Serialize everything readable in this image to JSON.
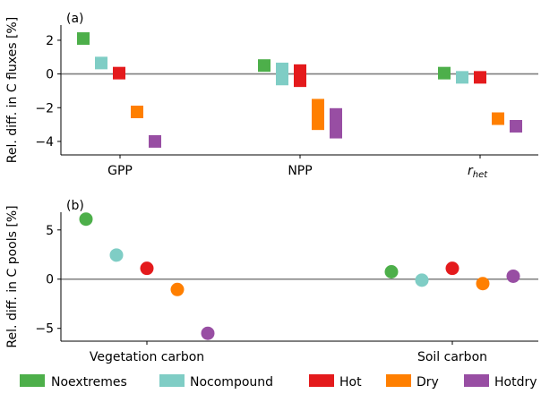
{
  "colors": {
    "Noextremes": "#4daf4a",
    "Nocompound": "#7fcdc5",
    "Hot": "#e41a1c",
    "Dry": "#ff7f00",
    "Hotdry": "#984ea3"
  },
  "legend": [
    "Noextremes",
    "Nocompound",
    "Hot",
    "Dry",
    "Hotdry"
  ],
  "chart_data": [
    {
      "type": "scatter",
      "panel_label": "(a)",
      "ylabel": "Rel. diff. in C fluxes [%]",
      "ylim": [
        -4.8,
        2.9
      ],
      "yticks": [
        2,
        0,
        -2,
        -4
      ],
      "ytick_labels": [
        "2",
        "0",
        "−2",
        "−4"
      ],
      "zero_line": true,
      "marker": "square",
      "categories": [
        "GPP",
        "NPP",
        "r_het"
      ],
      "category_labels": [
        "GPP",
        "NPP",
        "r"
      ],
      "category_subscripts": [
        "",
        "",
        "het"
      ],
      "series": [
        {
          "name": "Noextremes",
          "values": [
            [
              2.1,
              2.1
            ],
            [
              0.5,
              0.5
            ],
            [
              0.05,
              0.05
            ]
          ]
        },
        {
          "name": "Nocompound",
          "values": [
            [
              0.65,
              0.65
            ],
            [
              -0.3,
              0.3
            ],
            [
              -0.2,
              -0.2
            ]
          ]
        },
        {
          "name": "Hot",
          "values": [
            [
              0.05,
              0.05
            ],
            [
              -0.4,
              0.2
            ],
            [
              -0.2,
              -0.2
            ]
          ]
        },
        {
          "name": "Dry",
          "values": [
            [
              -2.25,
              -2.25
            ],
            [
              -2.95,
              -1.85
            ],
            [
              -2.65,
              -2.65
            ]
          ]
        },
        {
          "name": "Hotdry",
          "values": [
            [
              -4.0,
              -4.0
            ],
            [
              -3.45,
              -2.4
            ],
            [
              -3.1,
              -3.1
            ]
          ]
        }
      ]
    },
    {
      "type": "scatter",
      "panel_label": "(b)",
      "ylabel": "Rel. diff. in C pools [%]",
      "ylim": [
        -6.3,
        6.8
      ],
      "yticks": [
        5,
        0,
        -5
      ],
      "ytick_labels": [
        "5",
        "0",
        "−5"
      ],
      "zero_line": true,
      "marker": "circle",
      "categories": [
        "Vegetation carbon",
        "Soil carbon"
      ],
      "category_labels": [
        "Vegetation carbon",
        "Soil carbon"
      ],
      "series": [
        {
          "name": "Noextremes",
          "values": [
            6.1,
            0.75
          ]
        },
        {
          "name": "Nocompound",
          "values": [
            2.45,
            -0.1
          ]
        },
        {
          "name": "Hot",
          "values": [
            1.1,
            1.1
          ]
        },
        {
          "name": "Dry",
          "values": [
            -1.05,
            -0.45
          ]
        },
        {
          "name": "Hotdry",
          "values": [
            -5.5,
            0.3
          ]
        }
      ]
    }
  ]
}
